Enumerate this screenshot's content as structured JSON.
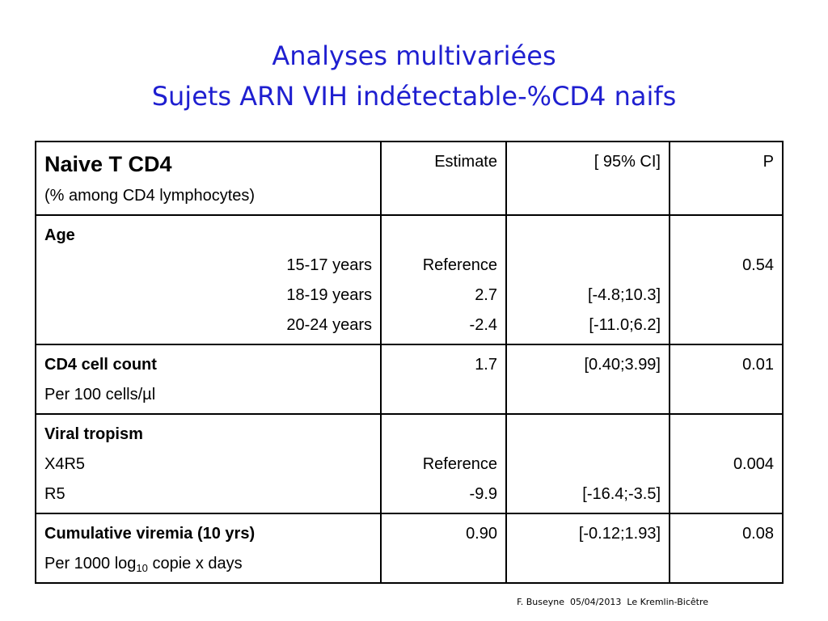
{
  "title": {
    "line1": "Analyses multivariées",
    "line2": "Sujets ARN VIH indétectable-%CD4 naifs"
  },
  "table": {
    "header": {
      "label": "Naive T CD4",
      "sublabel": "(% among CD4 lymphocytes)",
      "estimate": "Estimate",
      "ci": "[ 95% CI]",
      "p": "P"
    },
    "age": {
      "label": "Age",
      "rows": [
        {
          "label": "15-17 years",
          "estimate": "Reference",
          "ci": "",
          "p": "0.54"
        },
        {
          "label": "18-19 years",
          "estimate": "2.7",
          "ci": "[-4.8;10.3]",
          "p": ""
        },
        {
          "label": "20-24 years",
          "estimate": "-2.4",
          "ci": "[-11.0;6.2]",
          "p": ""
        }
      ]
    },
    "cd4": {
      "label": "CD4 cell count",
      "sublabel": "Per 100 cells/µl",
      "estimate": "1.7",
      "ci": "[0.40;3.99]",
      "p": "0.01"
    },
    "tropism": {
      "label": "Viral tropism",
      "rows": [
        {
          "label": "X4R5",
          "estimate": "Reference",
          "ci": "",
          "p": "0.004"
        },
        {
          "label": "R5",
          "estimate": "-9.9",
          "ci": "[-16.4;-3.5]",
          "p": ""
        }
      ]
    },
    "viremia": {
      "label": "Cumulative viremia (10 yrs)",
      "sublabel_pre": "Per 1000 log",
      "sublabel_sub": "10",
      "sublabel_post": " copie x days",
      "estimate": "0.90",
      "ci": "[-0.12;1.93]",
      "p": "0.08"
    }
  },
  "footer": "F. Buseyne  05/04/2013  Le Kremlin-Bicêtre"
}
